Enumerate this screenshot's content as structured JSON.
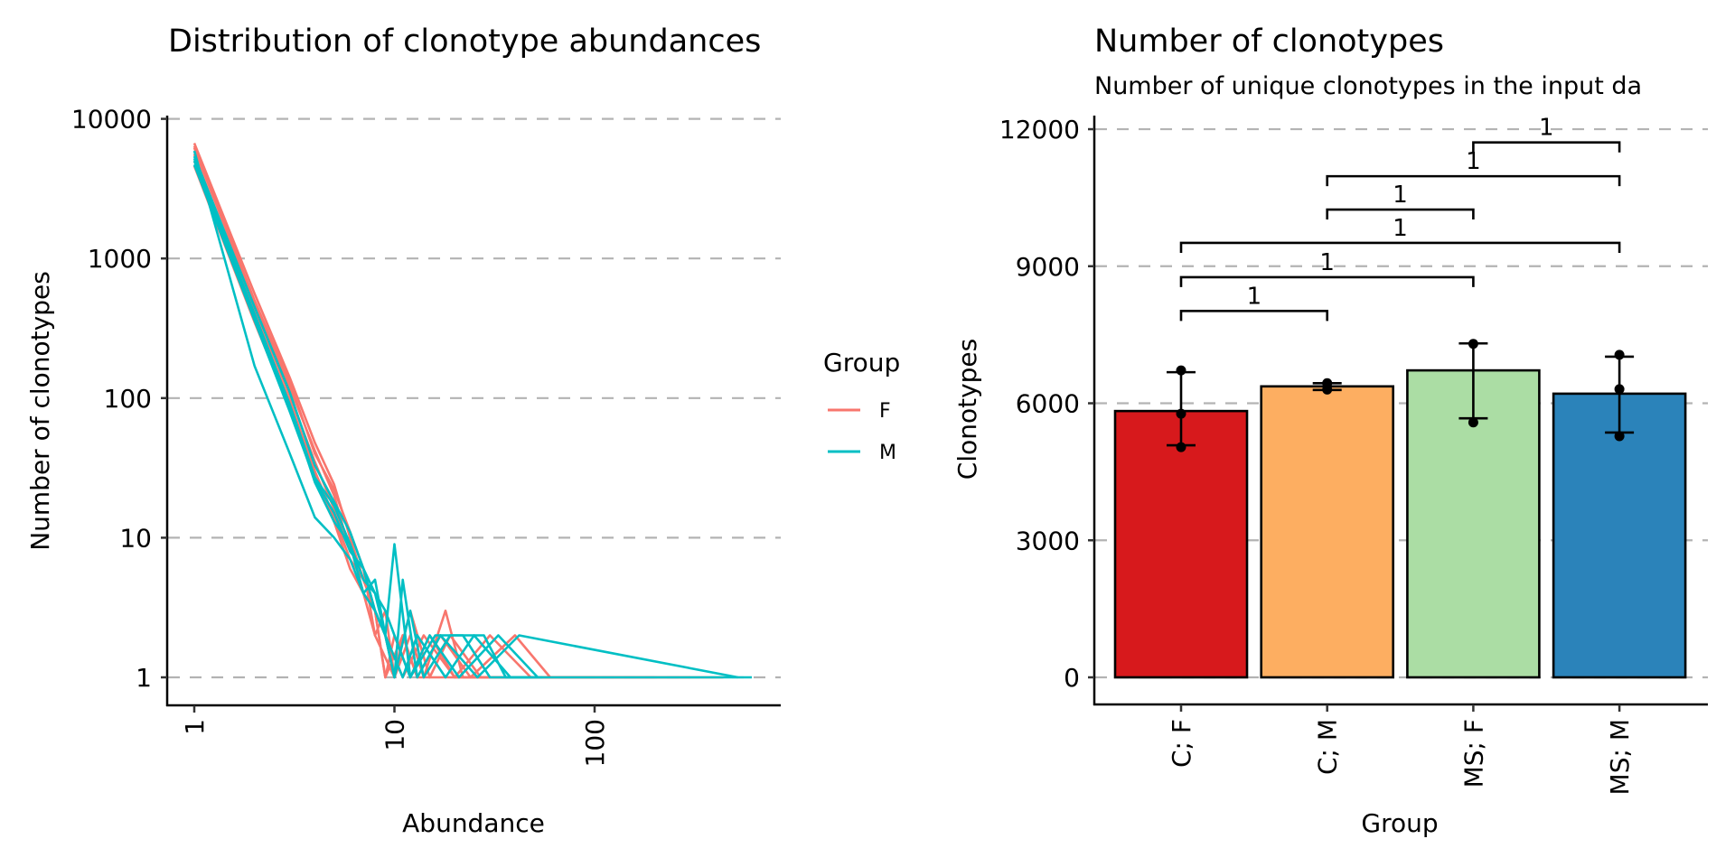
{
  "panels": {
    "left": {
      "title": "Distribution of clonotype abundances",
      "xlabel": "Abundance",
      "ylabel": "Number of clonotypes",
      "legend": {
        "title": "Group",
        "items": [
          {
            "label": "F",
            "color": "#F8766D"
          },
          {
            "label": "M",
            "color": "#00BFC4"
          }
        ]
      }
    },
    "right": {
      "title": "Number of clonotypes",
      "subtitle": "Number of unique clonotypes in the input da",
      "xlabel": "Group",
      "ylabel": "Clonotypes"
    }
  },
  "chart_data": [
    {
      "type": "line",
      "title": "Distribution of clonotype abundances",
      "xlabel": "Abundance",
      "ylabel": "Number of clonotypes",
      "xscale": "log10",
      "yscale": "log10",
      "xlim": [
        0.8,
        900
      ],
      "ylim": [
        0.85,
        10000
      ],
      "xticks": [
        1,
        10,
        100
      ],
      "xtick_labels": [
        "1",
        "10",
        "100"
      ],
      "yticks": [
        1,
        10,
        100,
        1000,
        10000
      ],
      "ytick_labels": [
        "1",
        "10",
        "100",
        "1000",
        "10000"
      ],
      "grid": "horizontal-dashed",
      "legend": {
        "title": "Group",
        "position": "right",
        "entries": [
          "F",
          "M"
        ]
      },
      "series": [
        {
          "name": "F",
          "group": "F",
          "x": [
            1,
            2,
            3,
            4,
            5,
            6,
            7,
            8,
            9,
            10,
            12,
            15,
            20,
            30,
            50,
            440
          ],
          "y": [
            6700,
            560,
            140,
            48,
            24,
            10,
            5,
            3,
            1,
            2,
            1,
            2,
            1,
            1,
            1,
            1
          ]
        },
        {
          "name": "F",
          "group": "F",
          "x": [
            1,
            2,
            3,
            4,
            5,
            6,
            7,
            8,
            9,
            10,
            11,
            13,
            16,
            25,
            40,
            300
          ],
          "y": [
            6200,
            480,
            120,
            42,
            20,
            8,
            6,
            2,
            3,
            1,
            2,
            1,
            1,
            1,
            1,
            1
          ]
        },
        {
          "name": "F",
          "group": "F",
          "x": [
            1,
            2,
            3,
            4,
            5,
            6,
            7,
            8,
            9,
            10,
            12,
            14,
            18,
            22,
            35,
            200
          ],
          "y": [
            5600,
            420,
            105,
            35,
            16,
            9,
            4,
            3,
            2,
            1,
            2,
            1,
            3,
            1,
            1,
            1
          ]
        },
        {
          "name": "F",
          "group": "F",
          "x": [
            1,
            2,
            3,
            4,
            5,
            6,
            7,
            8,
            9,
            11,
            13,
            17,
            24,
            40,
            60,
            150
          ],
          "y": [
            5000,
            380,
            95,
            30,
            14,
            7,
            5,
            3,
            1,
            2,
            1,
            2,
            1,
            2,
            1,
            1
          ]
        },
        {
          "name": "F",
          "group": "F",
          "x": [
            1,
            2,
            3,
            4,
            5,
            6,
            7,
            8,
            10,
            12,
            15,
            19,
            27,
            45,
            100
          ],
          "y": [
            4600,
            350,
            85,
            28,
            13,
            6,
            4,
            2,
            1,
            3,
            1,
            2,
            1,
            1,
            1
          ]
        },
        {
          "name": "F",
          "group": "F",
          "x": [
            1,
            2,
            3,
            4,
            5,
            6,
            7,
            8,
            9,
            11,
            14,
            20,
            30,
            48,
            80
          ],
          "y": [
            6400,
            500,
            130,
            40,
            22,
            11,
            6,
            3,
            2,
            1,
            2,
            1,
            2,
            1,
            1
          ]
        },
        {
          "name": "M",
          "group": "M",
          "x": [
            1,
            2,
            3,
            4,
            5,
            6,
            7,
            8,
            9,
            10,
            12,
            16,
            22,
            30,
            45,
            610
          ],
          "y": [
            5900,
            170,
            40,
            14,
            10,
            7,
            4,
            3,
            2,
            9,
            1,
            2,
            2,
            1,
            1,
            1
          ]
        },
        {
          "name": "M",
          "group": "M",
          "x": [
            1,
            2,
            3,
            4,
            5,
            6,
            7,
            8,
            9,
            10,
            11,
            13,
            17,
            26,
            42,
            520
          ],
          "y": [
            5400,
            450,
            110,
            33,
            18,
            11,
            6,
            4,
            2,
            1,
            5,
            1,
            2,
            1,
            2,
            1
          ]
        },
        {
          "name": "M",
          "group": "M",
          "x": [
            1,
            2,
            3,
            4,
            5,
            6,
            7,
            8,
            9,
            10,
            12,
            15,
            21,
            33,
            52
          ],
          "y": [
            5000,
            400,
            90,
            27,
            17,
            9,
            5,
            4,
            3,
            2,
            1,
            2,
            1,
            2,
            1
          ]
        },
        {
          "name": "M",
          "group": "M",
          "x": [
            1,
            2,
            3,
            4,
            5,
            6,
            7,
            8,
            9,
            11,
            13,
            18,
            25,
            38,
            55
          ],
          "y": [
            4700,
            360,
            80,
            26,
            15,
            8,
            6,
            3,
            2,
            1,
            2,
            1,
            2,
            1,
            1
          ]
        },
        {
          "name": "M",
          "group": "M",
          "x": [
            1,
            2,
            3,
            4,
            5,
            6,
            7,
            8,
            9,
            10,
            12,
            14,
            19,
            28,
            36,
            48
          ],
          "y": [
            5200,
            390,
            88,
            25,
            13,
            9,
            4,
            5,
            2,
            1,
            3,
            1,
            2,
            2,
            1,
            1
          ]
        }
      ]
    },
    {
      "type": "bar",
      "title": "Number of clonotypes",
      "subtitle": "Number of unique clonotypes in the input da",
      "xlabel": "Group",
      "ylabel": "Clonotypes",
      "categories": [
        "C; F",
        "C; M",
        "MS; F",
        "MS; M"
      ],
      "values": [
        5830,
        6370,
        6720,
        6210
      ],
      "colors": [
        "#D7191C",
        "#FDAE61",
        "#ABDDA4",
        "#2B83BA"
      ],
      "error_bars": [
        {
          "low": 5080,
          "high": 6680
        },
        {
          "low": 6290,
          "high": 6440
        },
        {
          "low": 5670,
          "high": 7310
        },
        {
          "low": 5360,
          "high": 7020
        }
      ],
      "points": [
        [
          6720,
          5770,
          5040
        ],
        [
          6440,
          6300
        ],
        [
          7300,
          5580
        ],
        [
          7060,
          6310,
          5280
        ]
      ],
      "ylim": [
        -600,
        12500
      ],
      "yticks": [
        0,
        3000,
        6000,
        9000,
        12000
      ],
      "ytick_labels": [
        "0",
        "3000",
        "6000",
        "9000",
        "12000"
      ],
      "grid": "horizontal-dashed",
      "comparisons": [
        {
          "from": "C; F",
          "to": "C; M",
          "y": 8020,
          "label": "1"
        },
        {
          "from": "C; F",
          "to": "MS; F",
          "y": 8760,
          "label": "1"
        },
        {
          "from": "C; F",
          "to": "MS; M",
          "y": 9510,
          "label": "1"
        },
        {
          "from": "C; M",
          "to": "MS; F",
          "y": 10240,
          "label": "1"
        },
        {
          "from": "C; M",
          "to": "MS; M",
          "y": 10970,
          "label": "1"
        },
        {
          "from": "MS; F",
          "to": "MS; M",
          "y": 11710,
          "label": "1"
        }
      ]
    }
  ]
}
